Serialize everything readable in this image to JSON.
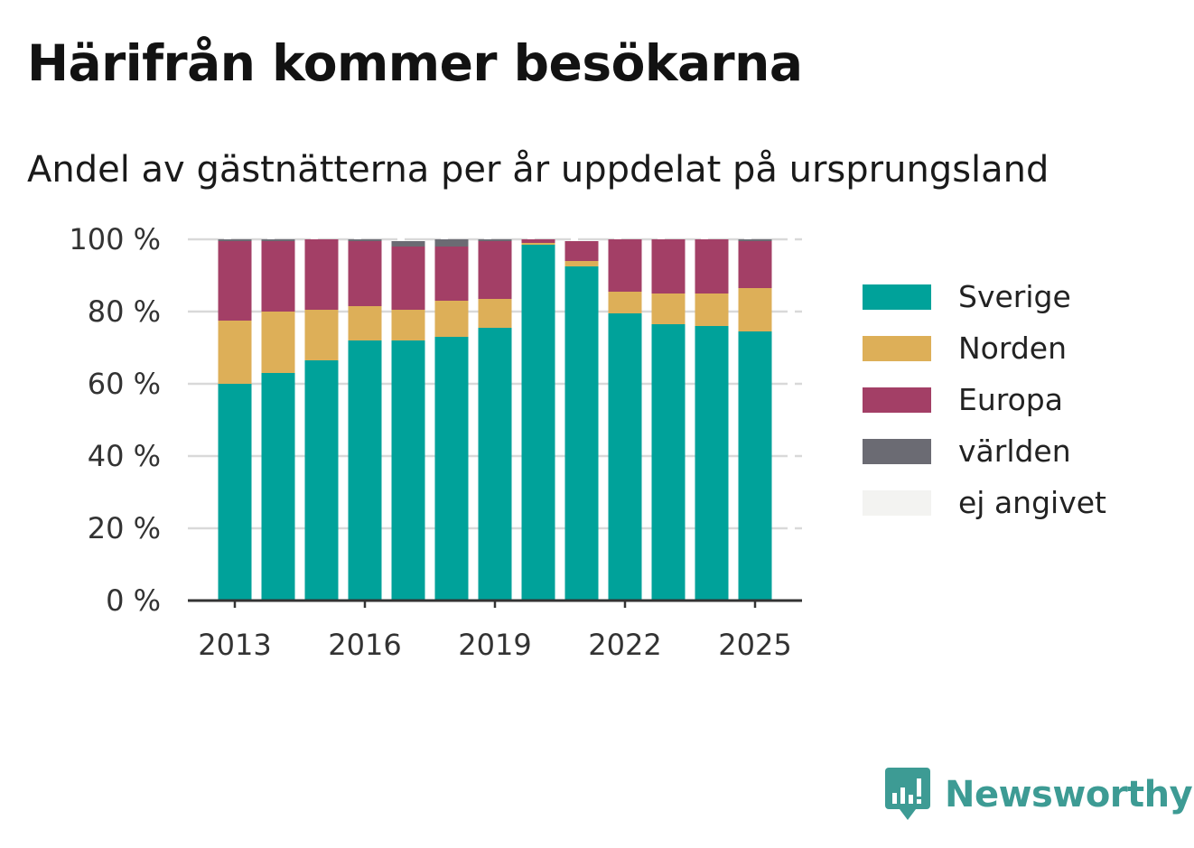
{
  "header": {
    "title": "Härifrån kommer besökarna",
    "subtitle": "Andel av gästnätterna per år uppdelat på ursprungsland"
  },
  "brand": {
    "name": "Newsworthy"
  },
  "chart_data": {
    "type": "bar",
    "stacked": true,
    "categories": [
      "2013",
      "2014",
      "2015",
      "2016",
      "2017",
      "2018",
      "2019",
      "2020",
      "2021",
      "2022",
      "2023",
      "2024",
      "2025"
    ],
    "x_tick_labels": [
      "2013",
      "2016",
      "2019",
      "2022",
      "2025"
    ],
    "y_tick_labels": [
      "0 %",
      "20 %",
      "40 %",
      "60 %",
      "80 %",
      "100 %"
    ],
    "ylim": [
      0,
      100
    ],
    "grid": true,
    "legend_position": "right",
    "series": [
      {
        "name": "Sverige",
        "color": "#00a29a",
        "values": [
          60,
          63,
          66.5,
          72,
          72,
          73,
          75.5,
          98.5,
          92.5,
          79.5,
          76.5,
          76,
          74.5
        ]
      },
      {
        "name": "Norden",
        "color": "#ddaf58",
        "values": [
          17.5,
          17,
          14,
          9.5,
          8.5,
          10,
          8,
          0.5,
          1.5,
          6,
          8.5,
          9,
          12
        ]
      },
      {
        "name": "Europa",
        "color": "#a33f66",
        "values": [
          22,
          19.5,
          19.5,
          18,
          17.5,
          15,
          16,
          1,
          5.5,
          14.5,
          15,
          15,
          13
        ]
      },
      {
        "name": "världen",
        "color": "#6b6b73",
        "values": [
          0.5,
          0.5,
          0,
          0.5,
          1.5,
          2,
          0.5,
          0,
          0,
          0,
          0,
          0,
          0.5
        ]
      },
      {
        "name": "ej angivet",
        "color": "#f3f3f1",
        "values": [
          0,
          0,
          0,
          0,
          0,
          0,
          0,
          0,
          0,
          0,
          0,
          0,
          0
        ]
      }
    ]
  }
}
